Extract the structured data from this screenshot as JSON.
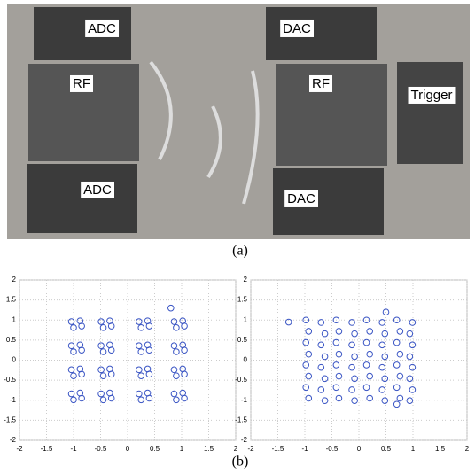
{
  "figure": {
    "photo_labels": [
      "ADC",
      "DAC",
      "RF",
      "RF",
      "Trigger",
      "ADC",
      "DAC"
    ],
    "caption_a": "(a)",
    "caption_b": "(b)"
  },
  "chart_data": [
    {
      "type": "scatter",
      "color": "#3a55c4",
      "grid": true,
      "xlim": [
        -2,
        2
      ],
      "ylim": [
        -2,
        2
      ],
      "xticks": [
        -2,
        -1.5,
        -1,
        -0.5,
        0,
        0.5,
        1,
        1.5,
        2
      ],
      "yticks": [
        -2,
        -1.5,
        -1,
        -0.5,
        0,
        0.5,
        1,
        1.5,
        2
      ],
      "x": [
        -1.04,
        -0.88,
        -0.85,
        -1.0,
        -0.49,
        -0.33,
        -0.3,
        -0.45,
        0.21,
        0.37,
        0.4,
        0.25,
        0.86,
        1.02,
        1.05,
        0.9,
        -1.04,
        -0.88,
        -0.85,
        -1.0,
        -0.49,
        -0.33,
        -0.3,
        -0.45,
        0.21,
        0.37,
        0.4,
        0.25,
        0.86,
        1.02,
        1.05,
        0.9,
        -1.04,
        -0.88,
        -0.85,
        -1.0,
        -0.49,
        -0.33,
        -0.3,
        -0.45,
        0.21,
        0.37,
        0.4,
        0.25,
        0.86,
        1.02,
        1.05,
        0.9,
        -1.04,
        -0.88,
        -0.85,
        -1.0,
        -0.49,
        -0.33,
        -0.3,
        -0.45,
        0.21,
        0.37,
        0.4,
        0.25,
        0.86,
        1.02,
        1.05,
        0.9,
        0.8
      ],
      "y": [
        0.96,
        0.98,
        0.85,
        0.81,
        0.96,
        0.98,
        0.85,
        0.81,
        0.96,
        0.98,
        0.85,
        0.81,
        0.96,
        0.98,
        0.85,
        0.81,
        0.36,
        0.38,
        0.25,
        0.21,
        0.36,
        0.38,
        0.25,
        0.21,
        0.36,
        0.38,
        0.25,
        0.21,
        0.36,
        0.38,
        0.25,
        0.21,
        -0.24,
        -0.22,
        -0.35,
        -0.39,
        -0.24,
        -0.22,
        -0.35,
        -0.39,
        -0.24,
        -0.22,
        -0.35,
        -0.39,
        -0.24,
        -0.22,
        -0.35,
        -0.39,
        -0.84,
        -0.82,
        -0.95,
        -0.99,
        -0.84,
        -0.82,
        -0.95,
        -0.99,
        -0.84,
        -0.82,
        -0.95,
        -0.99,
        -0.84,
        -0.82,
        -0.95,
        -0.99,
        1.3
      ]
    },
    {
      "type": "scatter",
      "color": "#3a55c4",
      "grid": true,
      "xlim": [
        -2,
        2
      ],
      "ylim": [
        -2,
        2
      ],
      "xticks": [
        -2,
        -1.5,
        -1,
        -0.5,
        0,
        0.5,
        1,
        1.5,
        2
      ],
      "yticks": [
        -2,
        -1.5,
        -1,
        -0.5,
        0,
        0.5,
        1,
        1.5,
        2
      ],
      "x": [
        -0.98,
        -0.7,
        -0.42,
        -0.13,
        0.14,
        0.43,
        0.7,
        0.99,
        -0.93,
        -0.63,
        -0.37,
        -0.08,
        0.2,
        0.48,
        0.76,
        0.94,
        -0.98,
        -0.7,
        -0.42,
        -0.13,
        0.14,
        0.43,
        0.7,
        0.99,
        -0.93,
        -0.63,
        -0.37,
        -0.08,
        0.2,
        0.48,
        0.76,
        0.94,
        -0.98,
        -0.7,
        -0.42,
        -0.13,
        0.14,
        0.43,
        0.7,
        0.99,
        -0.93,
        -0.63,
        -0.37,
        -0.08,
        0.2,
        0.48,
        0.76,
        0.94,
        -0.98,
        -0.7,
        -0.42,
        -0.13,
        0.14,
        0.43,
        0.7,
        0.99,
        -0.93,
        -0.63,
        -0.37,
        -0.08,
        0.2,
        0.48,
        0.76,
        0.94,
        0.5,
        -1.3,
        0.7
      ],
      "y": [
        1.0,
        0.94,
        1.0,
        0.94,
        1.0,
        0.94,
        1.0,
        0.94,
        0.72,
        0.66,
        0.72,
        0.66,
        0.72,
        0.66,
        0.72,
        0.66,
        0.44,
        0.38,
        0.44,
        0.38,
        0.44,
        0.38,
        0.44,
        0.38,
        0.15,
        0.09,
        0.15,
        0.09,
        0.15,
        0.09,
        0.15,
        0.09,
        -0.12,
        -0.18,
        -0.12,
        -0.18,
        -0.12,
        -0.18,
        -0.12,
        -0.18,
        -0.4,
        -0.46,
        -0.4,
        -0.46,
        -0.4,
        -0.46,
        -0.4,
        -0.46,
        -0.68,
        -0.74,
        -0.68,
        -0.74,
        -0.68,
        -0.74,
        -0.68,
        -0.74,
        -0.95,
        -1.01,
        -0.95,
        -1.01,
        -0.95,
        -1.01,
        -0.95,
        -1.01,
        1.2,
        0.95,
        -1.1
      ]
    }
  ]
}
